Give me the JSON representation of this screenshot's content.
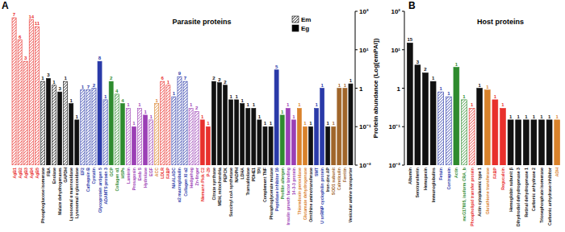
{
  "chart_data": [
    {
      "type": "bar",
      "title": "A",
      "subtitle": "Parasite proteins",
      "y_label": "Protein abundance (Log[emPAI])",
      "categories": [
        "AgB1",
        "AgB2",
        "AgB3",
        "AgB4",
        "AgB5",
        "Phosphoglucose isomerase",
        "FBA",
        "Enolase",
        "Malate dehydrogenases",
        "GAPDH",
        "Lysosomal α mannosidase",
        "Lysosomal α glucosidase",
        "EF2",
        "Cathepsin B",
        "Cystatin",
        "Glycoprotein antigen 5",
        "ADAMTS protein 3",
        "GCP",
        "Collagen α1",
        "HSPs",
        "Laminin",
        "Prosaposin",
        "Emb S",
        "Hydrolase",
        "EGF",
        "ACC",
        "LDLR",
        "FABP",
        "NAALADC",
        "α2 macroglobulin",
        "Collagen XI α2",
        "Hedgehog",
        "Zn-finger",
        "Niemann Pick C2",
        "P-29",
        "Citrate synthase",
        "MDH, mitochondria",
        "PEPCK",
        "Succinyl coA synthetase",
        "NADPH",
        "LDHA",
        "Transaldolase",
        "PDHE1",
        "TPI",
        "Complement TNF",
        "Phosphoglycerate mutase",
        "Peptidase inhibitor 16",
        "Profilin allergen",
        "Insulin growth factor binding",
        "14-3-3 protein",
        "Thioredoxin peroxidase",
        "Glutamate dehydrogenase",
        "Ornithine aminotransferase",
        "SMT",
        "U snRNP cyclophilin protein",
        "Iron-zinc AP",
        "SOD1 subunit",
        "Calreticulin",
        "Ferritin",
        "Vesicular amine transporter"
      ],
      "series": [
        {
          "name": "Em",
          "color": "#000000",
          "values": [
            68,
            18,
            5,
            60,
            40,
            1.5,
            null,
            1.2,
            null,
            1.5,
            null,
            null,
            0.9,
            0.9,
            1.0,
            null,
            0.5,
            null,
            0.7,
            null,
            0.3,
            null,
            0.3,
            null,
            0.15,
            0.4,
            1.5,
            1.2,
            0.6,
            2,
            1.5,
            0.3,
            0.25,
            null,
            null,
            null,
            null,
            null,
            null,
            null,
            null,
            null,
            null,
            null,
            null,
            null,
            null,
            null,
            null,
            null,
            null,
            null,
            null,
            null,
            null,
            null,
            null,
            null,
            null,
            null
          ]
        },
        {
          "name": "Eg",
          "color": "#000000",
          "values": [
            null,
            null,
            null,
            null,
            null,
            null,
            1.8,
            null,
            0.8,
            null,
            0.4,
            0.15,
            null,
            null,
            null,
            5,
            null,
            1.5,
            null,
            0.4,
            null,
            0.1,
            null,
            0.2,
            null,
            null,
            null,
            null,
            null,
            null,
            null,
            null,
            null,
            0.15,
            0.1,
            1.5,
            1.4,
            1.2,
            0.5,
            0.5,
            0.4,
            0.3,
            0.3,
            0.15,
            0.1,
            0.1,
            3,
            0.2,
            0.3,
            0.15,
            0.3,
            0.1,
            0.1,
            0.3,
            1.0,
            0.1,
            0.1,
            1.0,
            1.0,
            1.3
          ]
        }
      ],
      "colors": [
        "#e8302c",
        "#e8302c",
        "#e8302c",
        "#e8302c",
        "#e8302c",
        "#111111",
        "#111111",
        "#111111",
        "#111111",
        "#111111",
        "#111111",
        "#111111",
        "#2a3aa8",
        "#2a3aa8",
        "#2a3aa8",
        "#2a3aa8",
        "#2a3aa8",
        "#2e8b2e",
        "#2e8b2e",
        "#2e8b2e",
        "#9b3fb5",
        "#9b3fb5",
        "#9b3fb5",
        "#9b3fb5",
        "#9b3fb5",
        "#d9822b",
        "#e8302c",
        "#e8302c",
        "#2a3aa8",
        "#2a3aa8",
        "#2a3aa8",
        "#9b3fb5",
        "#9b3fb5",
        "#e8302c",
        "#e8302c",
        "#111111",
        "#111111",
        "#111111",
        "#111111",
        "#111111",
        "#111111",
        "#111111",
        "#111111",
        "#111111",
        "#111111",
        "#111111",
        "#2a3aa8",
        "#2e8b2e",
        "#9b3fb5",
        "#9b3fb5",
        "#d9822b",
        "#d9822b",
        "#111111",
        "#2a3aa8",
        "#2a3aa8",
        "#111111",
        "#a0652a",
        "#a0652a",
        "#a0652a",
        "#111111"
      ],
      "counts": [
        7,
        6,
        3,
        14,
        11,
        1,
        3,
        1,
        3,
        1,
        1,
        1,
        1,
        7,
        2,
        8,
        1,
        2,
        4,
        4,
        1,
        1,
        1,
        1,
        1,
        1,
        6,
        1,
        1,
        9,
        7,
        1,
        2,
        1,
        1,
        2,
        2,
        2,
        1,
        1,
        1,
        1,
        1,
        1,
        1,
        1,
        5,
        1,
        1,
        1,
        1,
        1,
        1,
        1,
        1,
        1,
        1,
        1,
        1,
        1
      ],
      "log": "y",
      "ylim": [
        0.01,
        100
      ],
      "yticks": [
        {
          "value": 0.01,
          "label": "10⁻²"
        },
        {
          "value": 0.1,
          "label": "10⁻¹"
        },
        1,
        {
          "value": 10,
          "label": "10¹"
        },
        {
          "value": 100,
          "label": "10²"
        }
      ],
      "legend": "upper right"
    },
    {
      "type": "bar",
      "title": "B",
      "subtitle": "Host proteins",
      "categories": [
        "Albumin",
        "Serotransferrin",
        "Hemopexin",
        "Immunoglobulins",
        "Fetuin",
        "Contrapsin",
        "Actin",
        "mcG17605, isoform CRA_b",
        "Phospholipid transfer protein",
        "Actin cytoplasmic type 1",
        "Glutathione transferase",
        "FABP",
        "Regucalcin",
        "Hemoglobin subunit β",
        "Dihydrodiol dehydrogenase 3",
        "Retinal dehydrogenase 1",
        "Carbonic anhydrase 2",
        "Triosephosphate isomerase",
        "Carbonic anhydrase inhibitor",
        "ADH"
      ],
      "series": [
        {
          "name": "Em",
          "color": "#000000",
          "values": [
            null,
            null,
            null,
            null,
            0.8,
            0.6,
            null,
            0.5,
            0.3,
            null,
            null,
            null,
            null,
            null,
            null,
            null,
            null,
            null,
            null,
            null
          ]
        },
        {
          "name": "Eg",
          "color": "#000000",
          "values": [
            15,
            4,
            2.5,
            1.5,
            null,
            null,
            3.5,
            null,
            null,
            1.0,
            0.9,
            0.5,
            0.3,
            0.15,
            0.15,
            0.15,
            0.15,
            0.15,
            0.15,
            0.15
          ]
        }
      ],
      "colors": [
        "#111111",
        "#111111",
        "#111111",
        "#111111",
        "#2a3aa8",
        "#2a3aa8",
        "#2e8b2e",
        "#2e8b2e",
        "#e8302c",
        "#111111",
        "#d9822b",
        "#e8302c",
        "#e8302c",
        "#111111",
        "#111111",
        "#111111",
        "#111111",
        "#111111",
        "#111111",
        "#d9822b"
      ],
      "counts": [
        15,
        3,
        2,
        1,
        1,
        1,
        1,
        1,
        1,
        1,
        1,
        1,
        1,
        1,
        1,
        1,
        1,
        1,
        1,
        1
      ],
      "log": "y",
      "ylim": [
        0.01,
        100
      ],
      "yticks": [
        {
          "value": 0.01,
          "label": "10⁻²"
        },
        {
          "value": 0.1,
          "label": "10⁻¹"
        },
        1,
        {
          "value": 10,
          "label": "10¹"
        },
        {
          "value": 100,
          "label": "10²"
        }
      ]
    }
  ]
}
